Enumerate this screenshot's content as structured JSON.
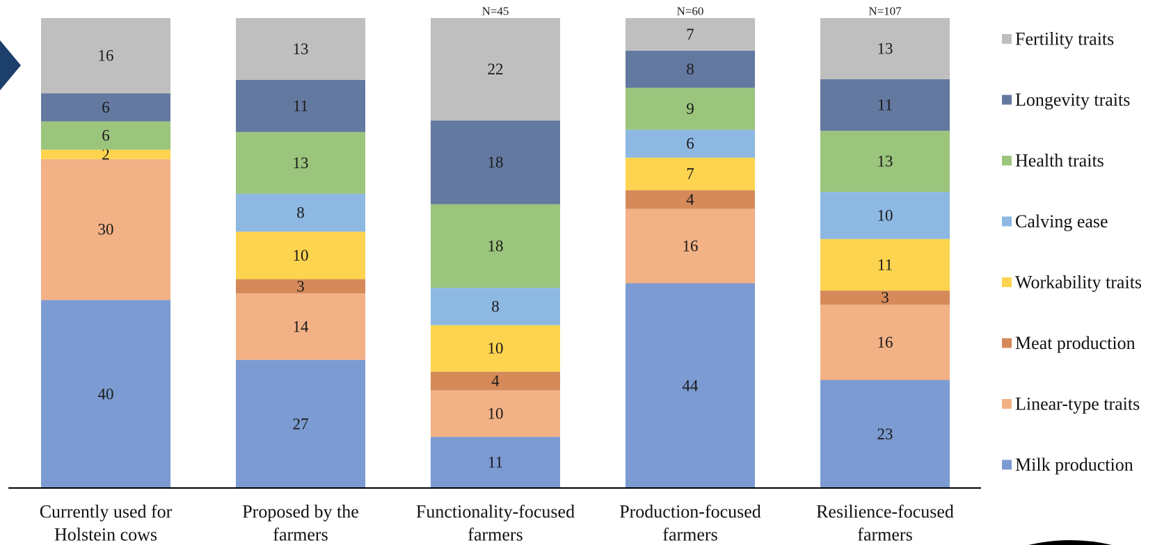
{
  "chart_data": {
    "type": "bar",
    "stacked": true,
    "categories": [
      [
        "Currently used for",
        "Holstein cows"
      ],
      [
        "Proposed by the",
        "farmers"
      ],
      [
        "Functionality-focused",
        "farmers"
      ],
      [
        "Production-focused",
        "farmers"
      ],
      [
        "Resilience-focused",
        "farmers"
      ]
    ],
    "annotations": [
      "",
      "",
      "N=45",
      "N=60",
      "N=107"
    ],
    "ylim": [
      0,
      100
    ],
    "grid": false,
    "legend_position": "right",
    "series": [
      {
        "name": "Milk production",
        "color": "#7b9bd2",
        "values": [
          40,
          27,
          11,
          44,
          23
        ]
      },
      {
        "name": "Linear-type traits",
        "color": "#f3b186",
        "values": [
          30,
          14,
          10,
          16,
          16
        ]
      },
      {
        "name": "Meat production",
        "color": "#d68a5a",
        "values": [
          0,
          3,
          4,
          4,
          3
        ]
      },
      {
        "name": "Workability traits",
        "color": "#fdd44f",
        "values": [
          2,
          10,
          10,
          7,
          11
        ]
      },
      {
        "name": "Calving ease",
        "color": "#8db8e2",
        "values": [
          0,
          8,
          8,
          6,
          10
        ]
      },
      {
        "name": "Health traits",
        "color": "#9bc57d",
        "values": [
          6,
          13,
          18,
          9,
          13
        ]
      },
      {
        "name": "Longevity traits",
        "color": "#6479a0",
        "values": [
          6,
          11,
          18,
          8,
          11
        ]
      },
      {
        "name": "Fertility traits",
        "color": "#bfbfbf",
        "values": [
          16,
          13,
          22,
          7,
          13
        ]
      }
    ]
  },
  "decor": {
    "arrow_color": "#1d3f6b",
    "logo_color": "#000000",
    "axis_color": "#000000"
  }
}
